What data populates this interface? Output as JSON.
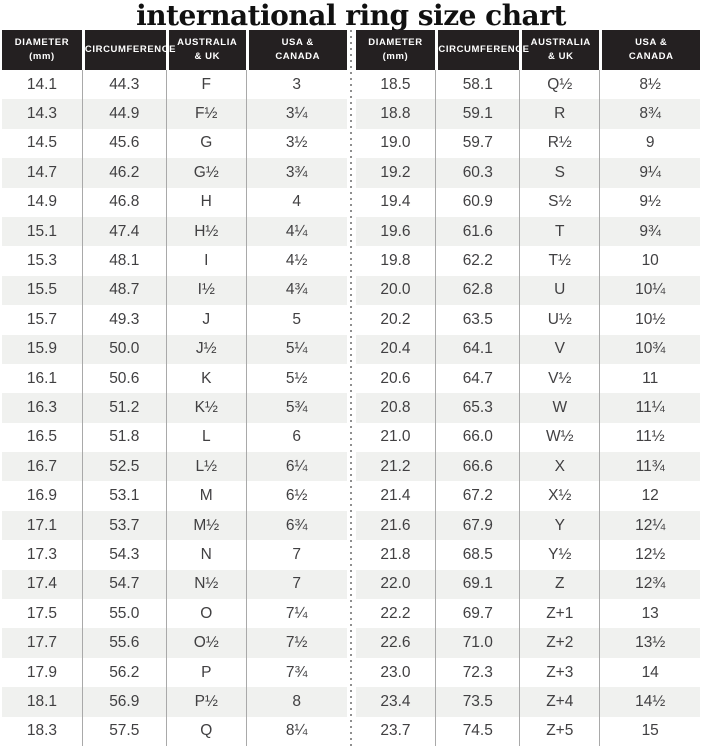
{
  "title": "international ring size chart",
  "colors": {
    "header_bg": "#242021",
    "header_text": "#ffffff",
    "body_text": "#414042",
    "stripe": "#f0f1ef",
    "column_divider": "#a9a9a9",
    "dotted_divider": "#8f8f8f",
    "title_color": "#111111"
  },
  "chart_data": {
    "type": "table",
    "title": "international ring size chart",
    "columns": [
      "DIAMETER (mm)",
      "CIRCUMFERENCE",
      "AUSTRALIA & UK",
      "USA & CANADA"
    ],
    "header_lines": [
      [
        "DIAMETER",
        "(mm)"
      ],
      [
        "CIRCUMFERENCE"
      ],
      [
        "AUSTRALIA",
        "& UK"
      ],
      [
        "USA &",
        "CANADA"
      ]
    ],
    "tables": [
      {
        "name": "left",
        "rows": [
          [
            "14.1",
            "44.3",
            "F",
            "3"
          ],
          [
            "14.3",
            "44.9",
            "F½",
            "3¼"
          ],
          [
            "14.5",
            "45.6",
            "G",
            "3½"
          ],
          [
            "14.7",
            "46.2",
            "G½",
            "3¾"
          ],
          [
            "14.9",
            "46.8",
            "H",
            "4"
          ],
          [
            "15.1",
            "47.4",
            "H½",
            "4¼"
          ],
          [
            "15.3",
            "48.1",
            "I",
            "4½"
          ],
          [
            "15.5",
            "48.7",
            "I½",
            "4¾"
          ],
          [
            "15.7",
            "49.3",
            "J",
            "5"
          ],
          [
            "15.9",
            "50.0",
            "J½",
            "5¼"
          ],
          [
            "16.1",
            "50.6",
            "K",
            "5½"
          ],
          [
            "16.3",
            "51.2",
            "K½",
            "5¾"
          ],
          [
            "16.5",
            "51.8",
            "L",
            "6"
          ],
          [
            "16.7",
            "52.5",
            "L½",
            "6¼"
          ],
          [
            "16.9",
            "53.1",
            "M",
            "6½"
          ],
          [
            "17.1",
            "53.7",
            "M½",
            "6¾"
          ],
          [
            "17.3",
            "54.3",
            "N",
            "7"
          ],
          [
            "17.4",
            "54.7",
            "N½",
            "7"
          ],
          [
            "17.5",
            "55.0",
            "O",
            "7¼"
          ],
          [
            "17.7",
            "55.6",
            "O½",
            "7½"
          ],
          [
            "17.9",
            "56.2",
            "P",
            "7¾"
          ],
          [
            "18.1",
            "56.9",
            "P½",
            "8"
          ],
          [
            "18.3",
            "57.5",
            "Q",
            "8¼"
          ]
        ]
      },
      {
        "name": "right",
        "rows": [
          [
            "18.5",
            "58.1",
            "Q½",
            "8½"
          ],
          [
            "18.8",
            "59.1",
            "R",
            "8¾"
          ],
          [
            "19.0",
            "59.7",
            "R½",
            "9"
          ],
          [
            "19.2",
            "60.3",
            "S",
            "9¼"
          ],
          [
            "19.4",
            "60.9",
            "S½",
            "9½"
          ],
          [
            "19.6",
            "61.6",
            "T",
            "9¾"
          ],
          [
            "19.8",
            "62.2",
            "T½",
            "10"
          ],
          [
            "20.0",
            "62.8",
            "U",
            "10¼"
          ],
          [
            "20.2",
            "63.5",
            "U½",
            "10½"
          ],
          [
            "20.4",
            "64.1",
            "V",
            "10¾"
          ],
          [
            "20.6",
            "64.7",
            "V½",
            "11"
          ],
          [
            "20.8",
            "65.3",
            "W",
            "11¼"
          ],
          [
            "21.0",
            "66.0",
            "W½",
            "11½"
          ],
          [
            "21.2",
            "66.6",
            "X",
            "11¾"
          ],
          [
            "21.4",
            "67.2",
            "X½",
            "12"
          ],
          [
            "21.6",
            "67.9",
            "Y",
            "12¼"
          ],
          [
            "21.8",
            "68.5",
            "Y½",
            "12½"
          ],
          [
            "22.0",
            "69.1",
            "Z",
            "12¾"
          ],
          [
            "22.2",
            "69.7",
            "Z+1",
            "13"
          ],
          [
            "22.6",
            "71.0",
            "Z+2",
            "13½"
          ],
          [
            "23.0",
            "72.3",
            "Z+3",
            "14"
          ],
          [
            "23.4",
            "73.5",
            "Z+4",
            "14½"
          ],
          [
            "23.7",
            "74.5",
            "Z+5",
            "15"
          ]
        ]
      }
    ]
  }
}
